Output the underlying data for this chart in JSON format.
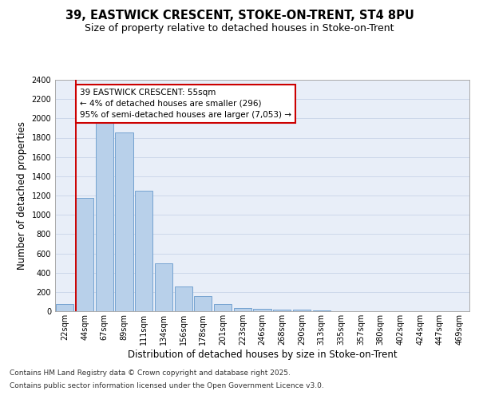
{
  "title_line1": "39, EASTWICK CRESCENT, STOKE-ON-TRENT, ST4 8PU",
  "title_line2": "Size of property relative to detached houses in Stoke-on-Trent",
  "xlabel": "Distribution of detached houses by size in Stoke-on-Trent",
  "ylabel": "Number of detached properties",
  "bar_labels": [
    "22sqm",
    "44sqm",
    "67sqm",
    "89sqm",
    "111sqm",
    "134sqm",
    "156sqm",
    "178sqm",
    "201sqm",
    "223sqm",
    "246sqm",
    "268sqm",
    "290sqm",
    "313sqm",
    "335sqm",
    "357sqm",
    "380sqm",
    "402sqm",
    "424sqm",
    "447sqm",
    "469sqm"
  ],
  "bar_values": [
    75,
    1175,
    1950,
    1850,
    1250,
    500,
    260,
    160,
    75,
    30,
    25,
    20,
    15,
    8,
    3,
    2,
    2,
    1,
    1,
    1,
    1
  ],
  "bar_color": "#b8d0ea",
  "bar_edge_color": "#6699cc",
  "annotation_text": "39 EASTWICK CRESCENT: 55sqm\n← 4% of detached houses are smaller (296)\n95% of semi-detached houses are larger (7,053) →",
  "annotation_box_color": "#ffffff",
  "annotation_box_edge": "#cc0000",
  "vline_color": "#cc0000",
  "ylim": [
    0,
    2400
  ],
  "yticks": [
    0,
    200,
    400,
    600,
    800,
    1000,
    1200,
    1400,
    1600,
    1800,
    2000,
    2200,
    2400
  ],
  "grid_color": "#c8d4e8",
  "background_color": "#e8eef8",
  "footer_line1": "Contains HM Land Registry data © Crown copyright and database right 2025.",
  "footer_line2": "Contains public sector information licensed under the Open Government Licence v3.0.",
  "title_fontsize": 10.5,
  "subtitle_fontsize": 9,
  "axis_label_fontsize": 8.5,
  "tick_fontsize": 7,
  "footer_fontsize": 6.5,
  "annotation_fontsize": 7.5
}
